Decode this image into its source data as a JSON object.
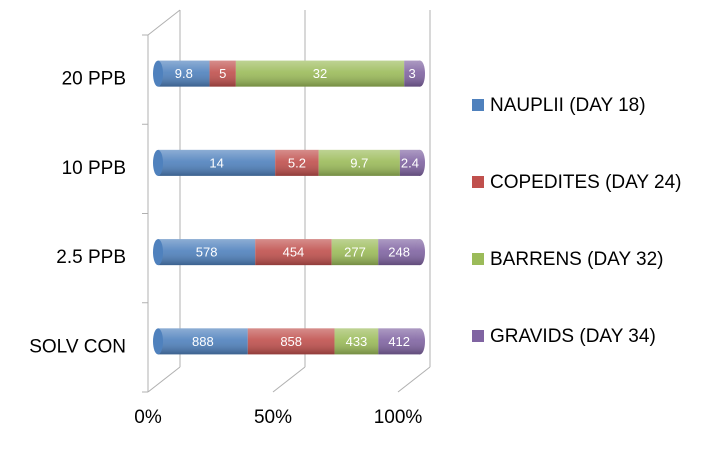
{
  "chart_data": {
    "type": "bar",
    "orientation": "horizontal",
    "stacked": "percent",
    "categories": [
      "20 PPB",
      "10 PPB",
      "2.5 PPB",
      "SOLV CON"
    ],
    "series": [
      {
        "name": "NAUPLII (DAY 18)",
        "color": "#4f81bd",
        "values": [
          9.8,
          14,
          578,
          888
        ]
      },
      {
        "name": "COPEDITES (DAY 24)",
        "color": "#c0504d",
        "values": [
          5,
          5.2,
          454,
          858
        ]
      },
      {
        "name": "BARRENS (DAY 32)",
        "color": "#9bbb59",
        "values": [
          32,
          9.7,
          277,
          433
        ]
      },
      {
        "name": "GRAVIDS (DAY 34)",
        "color": "#8064a2",
        "values": [
          3,
          2.4,
          248,
          412
        ]
      }
    ],
    "xlim": [
      0,
      100
    ],
    "xticks": [
      {
        "value": 0,
        "label": "0%"
      },
      {
        "value": 50,
        "label": "50%"
      },
      {
        "value": 100,
        "label": "100%"
      }
    ],
    "grid": true,
    "legend": "right"
  }
}
